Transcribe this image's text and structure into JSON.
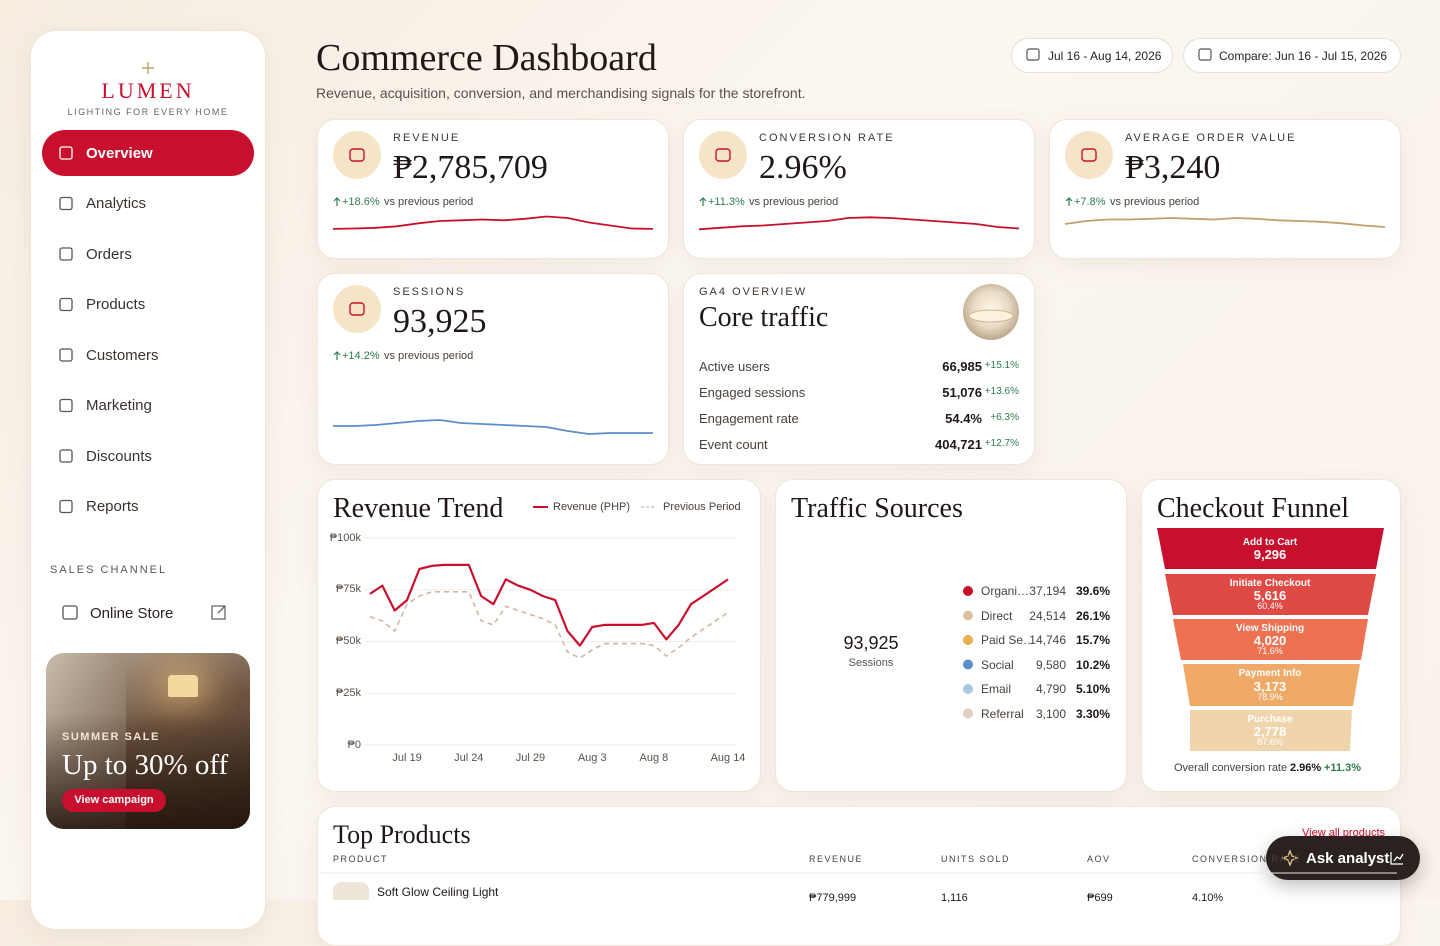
{
  "sidebar": {
    "brand": "LUMEN",
    "tagline": "LIGHTING FOR EVERY HOME",
    "nav": [
      "Overview",
      "Analytics",
      "Orders",
      "Products",
      "Customers",
      "Marketing",
      "Discounts",
      "Reports"
    ],
    "section_title": "SALES CHANNEL",
    "channel": "Online Store",
    "promo": {
      "eyebrow": "SUMMER SALE",
      "headline": "Up to 30% off",
      "button": "View campaign"
    }
  },
  "header": {
    "title": "Commerce Dashboard",
    "subtitle": "Revenue, acquisition, conversion, and merchandising signals for the storefront.",
    "date_range": "Jul 16 - Aug 14, 2026",
    "compare": "Compare: Jun 16 - Jul 15, 2026"
  },
  "kpis": [
    {
      "label": "REVENUE",
      "value": "₱2,785,709",
      "change": "+18.6%",
      "note": "vs previous period",
      "sparkline": {
        "color": "#c8102e",
        "ylim": [
          0,
          20
        ],
        "values": [
          4.7,
          5,
          5.5,
          6.5,
          8.5,
          10,
          10.5,
          11,
          10.5,
          11.5,
          13,
          12,
          9,
          7,
          5,
          4.7
        ]
      }
    },
    {
      "label": "CONVERSION RATE",
      "value": "2.96%",
      "change": "+11.3%",
      "note": "vs previous period",
      "sparkline": {
        "color": "#c8102e",
        "ylim": [
          0,
          20
        ],
        "values": [
          4.5,
          5.5,
          6.5,
          7,
          8,
          9,
          10,
          12,
          12.5,
          12,
          11,
          10,
          9,
          8,
          6,
          5
        ]
      }
    },
    {
      "label": "AVERAGE ORDER VALUE",
      "value": "₱3,240",
      "change": "+7.8%",
      "note": "vs previous period",
      "sparkline": {
        "color": "#c4a06a",
        "ylim": [
          0,
          20
        ],
        "values": [
          8,
          10,
          11,
          11,
          11.5,
          12,
          11.5,
          11,
          12,
          11.5,
          10.5,
          10,
          9.5,
          8.5,
          7,
          6
        ]
      }
    },
    {
      "label": "SESSIONS",
      "value": "93,925",
      "change": "+14.2%",
      "note": "vs previous period",
      "sparkline": {
        "color": "#5b8ec9",
        "ylim": [
          0,
          20
        ],
        "values": [
          8.5,
          8.5,
          9,
          10,
          11,
          11.5,
          10,
          9.5,
          9,
          8.5,
          8,
          6,
          4.5,
          5,
          5,
          5
        ]
      }
    }
  ],
  "ga4": {
    "eyebrow": "GA4 OVERVIEW",
    "title": "Core traffic",
    "rows": [
      {
        "label": "Active users",
        "value": "66,985",
        "change": "+15.1%"
      },
      {
        "label": "Engaged sessions",
        "value": "51,076",
        "change": "+13.6%"
      },
      {
        "label": "Engagement rate",
        "value": "54.4%",
        "change": "+6.3%"
      },
      {
        "label": "Event count",
        "value": "404,721",
        "change": "+12.7%"
      }
    ]
  },
  "revenue_trend": {
    "title": "Revenue Trend",
    "chart_data": {
      "type": "line",
      "categories": [
        null,
        null,
        null,
        "Jul 19",
        null,
        null,
        null,
        null,
        "Jul 24",
        null,
        null,
        null,
        null,
        "Jul 29",
        null,
        null,
        null,
        null,
        "Aug 3",
        null,
        null,
        null,
        null,
        "Aug 8",
        null,
        null,
        null,
        null,
        null,
        "Aug 14"
      ],
      "series": [
        {
          "name": "Revenue (PHP)",
          "color": "#c8102e",
          "dashed": false,
          "values": [
            73000,
            77000,
            65000,
            70000,
            85000,
            86500,
            87000,
            87000,
            87000,
            72000,
            68000,
            80000,
            77000,
            75000,
            72000,
            70000,
            55000,
            48000,
            57000,
            58000,
            58000,
            58000,
            58000,
            59000,
            51000,
            58000,
            68000,
            72000,
            76000,
            80000
          ]
        },
        {
          "name": "Previous Period",
          "color": "#cdb8a8",
          "dashed": true,
          "values": [
            62000,
            60000,
            55000,
            68000,
            72000,
            74000,
            74000,
            74000,
            74000,
            60000,
            58000,
            67000,
            65000,
            63000,
            61000,
            58000,
            45000,
            42000,
            46000,
            49000,
            49000,
            49000,
            49000,
            48000,
            43000,
            47000,
            52000,
            56000,
            60000,
            64000
          ]
        }
      ],
      "ylim": [
        0,
        100000
      ],
      "yticks": [
        {
          "value": 0,
          "label": "₱0"
        },
        {
          "value": 25000,
          "label": "₱25k"
        },
        {
          "value": 50000,
          "label": "₱50k"
        },
        {
          "value": 75000,
          "label": "₱75k"
        },
        {
          "value": 100000,
          "label": "₱100k"
        }
      ],
      "grid": true
    }
  },
  "traffic_sources": {
    "title": "Traffic Sources",
    "total": "93,925",
    "total_label": "Sessions",
    "sources": [
      {
        "name": "Organi…",
        "sessions": "37,194",
        "share": "39.6%",
        "color": "#c8102e"
      },
      {
        "name": "Direct",
        "sessions": "24,514",
        "share": "26.1%",
        "color": "#dcc3a0"
      },
      {
        "name": "Paid Se…",
        "sessions": "14,746",
        "share": "15.7%",
        "color": "#e8b04a"
      },
      {
        "name": "Social",
        "sessions": "9,580",
        "share": "10.2%",
        "color": "#5b8ec9"
      },
      {
        "name": "Email",
        "sessions": "4,790",
        "share": "5.10%",
        "color": "#a7c8e0"
      },
      {
        "name": "Referral",
        "sessions": "3,100",
        "share": "3.30%",
        "color": "#e0cfc2"
      }
    ]
  },
  "checkout_funnel": {
    "title": "Checkout Funnel",
    "steps": [
      {
        "name": "Add to Cart",
        "value": "9,296",
        "color": "#c8102e"
      },
      {
        "name": "Initiate Checkout",
        "value": "5,616",
        "rate": "60.4%",
        "color": "#e04a45"
      },
      {
        "name": "View Shipping",
        "value": "4,020",
        "rate": "71.6%",
        "color": "#ee7252"
      },
      {
        "name": "Payment Info",
        "value": "3,173",
        "rate": "78.9%",
        "color": "#f0aa68"
      },
      {
        "name": "Purchase",
        "value": "2,778",
        "rate": "87.6%",
        "color": "#efd4ac"
      }
    ],
    "footer_label": "Overall conversion rate",
    "footer_value": "2.96%",
    "footer_change": "+11.3%"
  },
  "top_products": {
    "title": "Top Products",
    "link": "View all products",
    "columns": [
      "PRODUCT",
      "REVENUE",
      "UNITS SOLD",
      "AOV",
      "CONVERSION RATE"
    ],
    "rows": [
      [
        "Soft Glow Ceiling Light",
        "₱779,999",
        "1,116",
        "₱699",
        "4.10%"
      ]
    ]
  },
  "assistant": {
    "label": "Ask analyst"
  }
}
